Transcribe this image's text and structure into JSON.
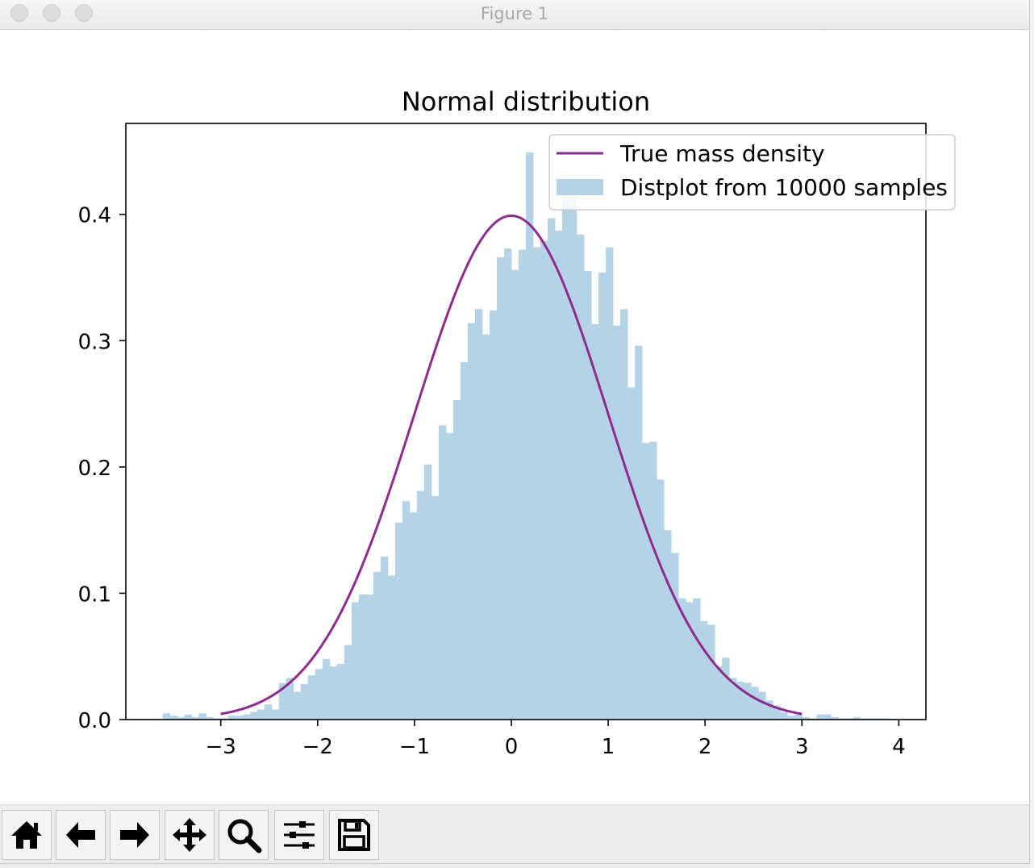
{
  "window": {
    "title": "Figure 1",
    "traffic_lights": [
      "close",
      "minimize",
      "zoom"
    ]
  },
  "toolbar": {
    "buttons": [
      {
        "name": "home-button",
        "icon": "home-icon"
      },
      {
        "name": "back-button",
        "icon": "arrow-left-icon"
      },
      {
        "name": "forward-button",
        "icon": "arrow-right-icon"
      },
      {
        "name": "pan-button",
        "icon": "move-icon"
      },
      {
        "name": "zoom-button",
        "icon": "magnifier-icon"
      },
      {
        "name": "configure-subplots-button",
        "icon": "sliders-icon"
      },
      {
        "name": "save-button",
        "icon": "floppy-disk-icon"
      }
    ]
  },
  "chart_data": {
    "type": "bar",
    "title": "Normal distribution",
    "xlabel": "",
    "ylabel": "",
    "xlim": [
      -3.98,
      4.28
    ],
    "ylim": [
      0,
      0.472
    ],
    "xticks": [
      -3,
      -2,
      -1,
      0,
      1,
      2,
      3,
      4
    ],
    "xtick_labels": [
      "−3",
      "−2",
      "−1",
      "0",
      "1",
      "2",
      "3",
      "4"
    ],
    "yticks": [
      0.0,
      0.1,
      0.2,
      0.3,
      0.4
    ],
    "ytick_labels": [
      "0.0",
      "0.1",
      "0.2",
      "0.3",
      "0.4"
    ],
    "grid": false,
    "legend_position": "upper right",
    "series": [
      {
        "name": "True mass density",
        "type": "line",
        "color": "#8e2b8e",
        "x_range": [
          -3,
          3
        ],
        "function": "standard normal pdf",
        "peak": 0.399
      },
      {
        "name": "Distplot from 10000 samples",
        "type": "histogram",
        "color": "#b4d3e7",
        "bin_start": -3.6,
        "bin_width": 0.075,
        "values": [
          0.005,
          0.003,
          0.002,
          0.004,
          0.002,
          0.005,
          0.002,
          0.001,
          0.001,
          0.003,
          0.003,
          0.004,
          0.006,
          0.008,
          0.012,
          0.008,
          0.029,
          0.033,
          0.022,
          0.028,
          0.035,
          0.04,
          0.048,
          0.042,
          0.044,
          0.059,
          0.093,
          0.099,
          0.099,
          0.117,
          0.129,
          0.114,
          0.156,
          0.173,
          0.164,
          0.181,
          0.202,
          0.177,
          0.233,
          0.227,
          0.253,
          0.283,
          0.314,
          0.325,
          0.305,
          0.324,
          0.366,
          0.373,
          0.356,
          0.372,
          0.449,
          0.374,
          0.379,
          0.397,
          0.387,
          0.427,
          0.415,
          0.384,
          0.355,
          0.313,
          0.354,
          0.374,
          0.312,
          0.325,
          0.263,
          0.296,
          0.219,
          0.22,
          0.19,
          0.15,
          0.132,
          0.096,
          0.093,
          0.096,
          0.078,
          0.075,
          0.042,
          0.049,
          0.033,
          0.03,
          0.029,
          0.026,
          0.022,
          0.015,
          0.011,
          0.006,
          0.003,
          0.004,
          0.002,
          0.001,
          0.004,
          0.004,
          0.002,
          0.001,
          0.001,
          0.002,
          0.001,
          0.001,
          0.001,
          0.001
        ]
      }
    ]
  }
}
